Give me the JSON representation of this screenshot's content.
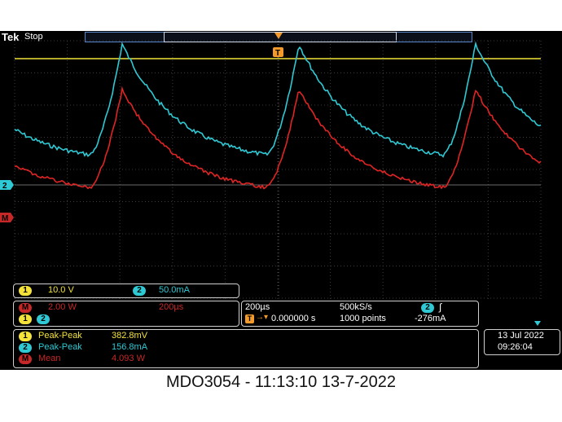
{
  "header": {
    "brand": "Tek",
    "run_status": "Stop",
    "trigger_marker": "T"
  },
  "channels": {
    "ch1": {
      "label": "1",
      "scale": "10.0 V",
      "color": "#f2e23a"
    },
    "ch2": {
      "label": "2",
      "scale": "50.0mA",
      "color": "#2ec9d4"
    },
    "math": {
      "label": "M",
      "scale": "2.00 W",
      "time": "200µs",
      "sources": [
        "1",
        "2"
      ],
      "color": "#e02424"
    }
  },
  "timebase": {
    "scale": "200µs",
    "sample_rate": "500kS/s",
    "trigger_position": "0.000000 s",
    "record_length": "1000 points",
    "trigger_source": "2",
    "trigger_level": "-276mA"
  },
  "measurements": [
    {
      "source": "1",
      "name": "Peak-Peak",
      "value": "382.8mV",
      "color": "#f2e23a"
    },
    {
      "source": "2",
      "name": "Peak-Peak",
      "value": "156.8mA",
      "color": "#2ec9d4"
    },
    {
      "source": "M",
      "name": "Mean",
      "value": "4.093 W",
      "color": "#e02424"
    }
  ],
  "datetime": {
    "date": "13 Jul  2022",
    "time": "09:26:04"
  },
  "caption": "MDO3054 - 11:13:10   13-7-2022"
}
